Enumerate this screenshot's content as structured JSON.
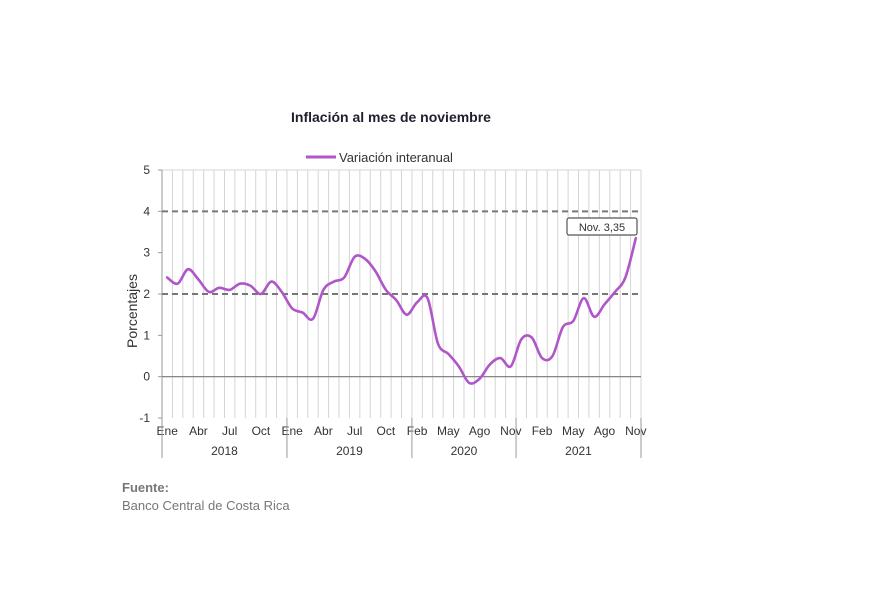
{
  "chart_data": {
    "type": "line",
    "title": "Inflación al mes de noviembre",
    "ylabel": "Porcentajes",
    "ylim": [
      -1,
      5
    ],
    "yticks": [
      "-1",
      "0",
      "1",
      "2",
      "3",
      "4",
      "5"
    ],
    "reference_lines": [
      2,
      4
    ],
    "grid": true,
    "legend_position": "top-center",
    "x_tick_labels": [
      "Ene",
      "Abr",
      "Jul",
      "Oct",
      "Ene",
      "Abr",
      "Jul",
      "Oct",
      "Feb",
      "May",
      "Ago",
      "Nov",
      "Feb",
      "May",
      "Ago",
      "Nov"
    ],
    "years": [
      "2018",
      "2019",
      "2020",
      "2021"
    ],
    "series": [
      {
        "name": "Variación interanual",
        "color": "#b056c8",
        "values": [
          2.4,
          2.25,
          2.6,
          2.35,
          2.05,
          2.15,
          2.1,
          2.25,
          2.2,
          2.0,
          2.3,
          2.05,
          1.65,
          1.55,
          1.4,
          2.1,
          2.3,
          2.4,
          2.9,
          2.85,
          2.55,
          2.1,
          1.85,
          1.5,
          1.8,
          1.9,
          0.8,
          0.55,
          0.25,
          -0.15,
          -0.05,
          0.3,
          0.45,
          0.25,
          0.9,
          0.95,
          0.45,
          0.5,
          1.2,
          1.35,
          1.9,
          1.45,
          1.75,
          2.05,
          2.4,
          3.35
        ]
      }
    ],
    "annotation": "Nov. 3,35"
  },
  "source": {
    "label": "Fuente:",
    "text": "Banco Central de Costa Rica"
  }
}
